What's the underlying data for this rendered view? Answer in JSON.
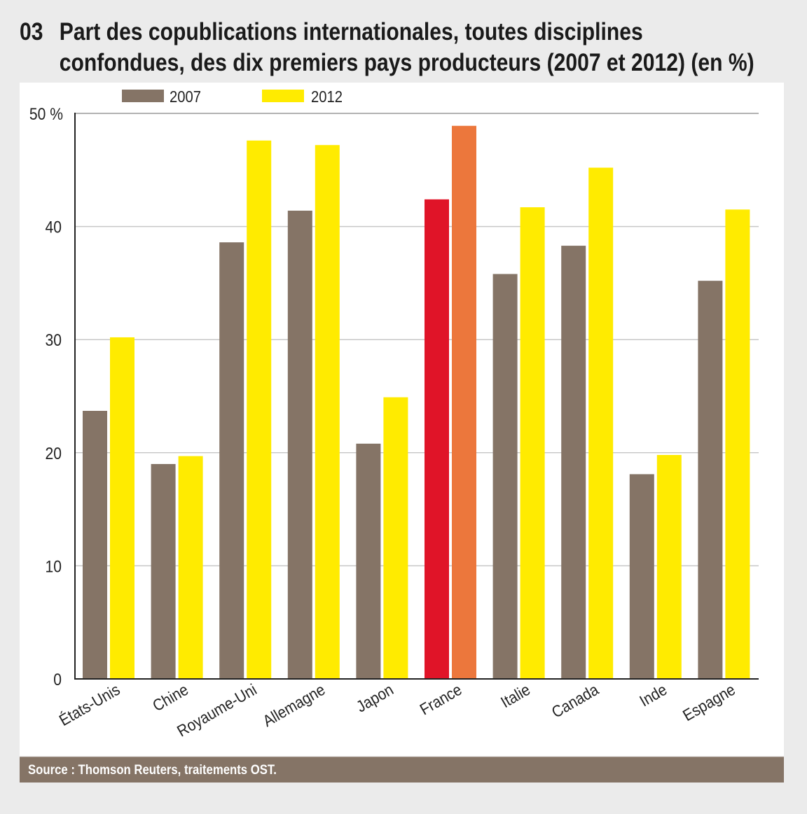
{
  "header": {
    "number": "03",
    "title_line1": "Part des copublications internationales, toutes disciplines",
    "title_line2": "confondues, des dix premiers pays producteurs (2007 et 2012) (en %)"
  },
  "footer": {
    "source": "Source : Thomson Reuters, traitements OST."
  },
  "colors": {
    "s2007": "#857466",
    "s2012": "#ffeb00",
    "france2007": "#e01428",
    "france2012": "#ec773c",
    "grid": "#c8c8c8",
    "footer_bg": "#857466"
  },
  "chart_data": {
    "type": "bar",
    "title": "Part des copublications internationales, toutes disciplines confondues, des dix premiers pays producteurs (2007 et 2012) (en %)",
    "xlabel": "",
    "ylabel": "",
    "ylim": [
      0,
      50
    ],
    "yticks": [
      0,
      10,
      20,
      30,
      40,
      50
    ],
    "ytick_labels": [
      "0",
      "10",
      "20",
      "30",
      "40",
      "50 %"
    ],
    "grid": true,
    "legend": "top-left",
    "categories": [
      "États-Unis",
      "Chine",
      "Royaume-Uni",
      "Allemagne",
      "Japon",
      "France",
      "Italie",
      "Canada",
      "Inde",
      "Espagne"
    ],
    "highlight_category": "France",
    "series": [
      {
        "name": "2007",
        "values": [
          23.7,
          19.0,
          38.6,
          41.4,
          20.8,
          42.4,
          35.8,
          38.3,
          18.1,
          35.2
        ]
      },
      {
        "name": "2012",
        "values": [
          30.2,
          19.7,
          47.6,
          47.2,
          24.9,
          48.9,
          41.7,
          45.2,
          19.8,
          41.5
        ]
      }
    ]
  }
}
